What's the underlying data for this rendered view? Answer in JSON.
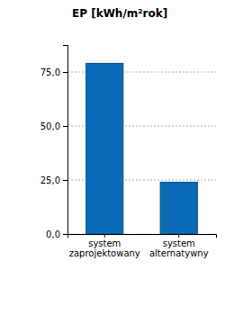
{
  "chart_data": {
    "type": "bar",
    "title": "EP [kWh/m²rok]",
    "categories": [
      "system zaprojektowany",
      "system alternatywny"
    ],
    "values": [
      79,
      24
    ],
    "color": "#0a6ab6",
    "ylim": [
      0,
      87.5
    ],
    "yticks": [
      {
        "value": 0,
        "label": "0,0"
      },
      {
        "value": 25,
        "label": "25,0"
      },
      {
        "value": 50,
        "label": "50,0"
      },
      {
        "value": 75,
        "label": "75,0"
      }
    ],
    "grid": true
  }
}
